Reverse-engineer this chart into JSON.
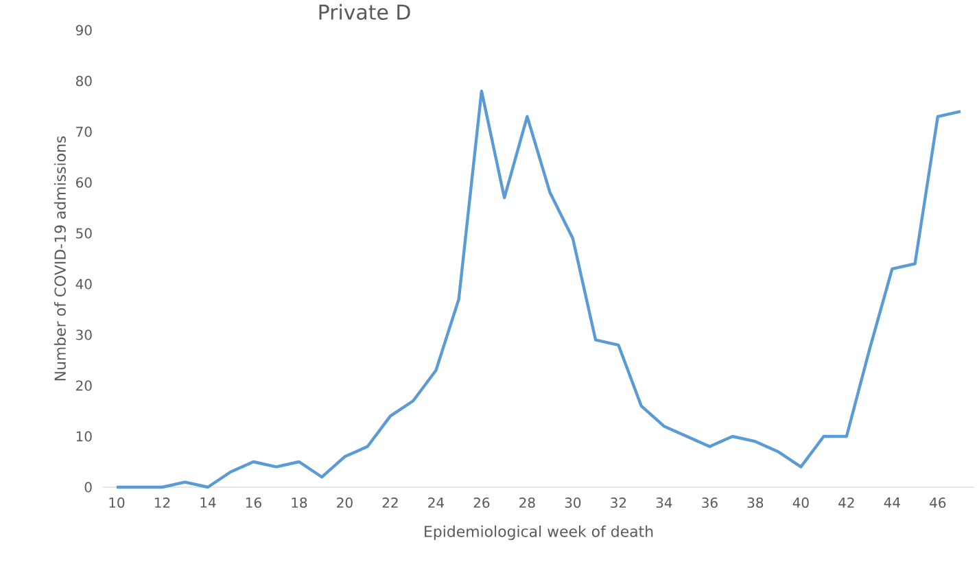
{
  "chart_data": {
    "type": "line",
    "title": "Private D",
    "xlabel": "Epidemiological week of death",
    "ylabel": "Number of COVID-19 admissions",
    "categories": [
      "10",
      null,
      "12",
      null,
      "14",
      null,
      "16",
      null,
      "18",
      null,
      "20",
      null,
      "22",
      null,
      "24",
      null,
      "26",
      null,
      "28",
      null,
      "30",
      null,
      "32",
      null,
      "34",
      null,
      "36",
      null,
      "38",
      null,
      "40",
      null,
      "42",
      null,
      "44",
      null,
      "46",
      null
    ],
    "series": [
      {
        "color": "#5b9bd5",
        "values": [
          0,
          0,
          0,
          1,
          0,
          3,
          5,
          4,
          5,
          2,
          6,
          8,
          14,
          17,
          23,
          37,
          78,
          57,
          73,
          58,
          49,
          29,
          28,
          16,
          12,
          10,
          8,
          10,
          9,
          7,
          4,
          10,
          10,
          27,
          43,
          44,
          73,
          74
        ]
      }
    ],
    "ylim": [
      0,
      90
    ],
    "yticks": [
      0,
      10,
      20,
      30,
      40,
      50,
      60,
      70,
      80,
      90
    ],
    "grid": false,
    "marker": "none",
    "line_style": "solid"
  }
}
